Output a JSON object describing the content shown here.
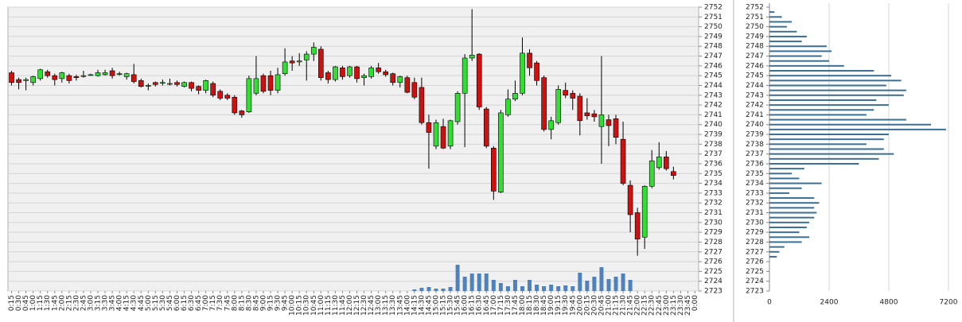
{
  "chart_data": [
    {
      "type": "candlestick",
      "categories": [
        "0:15",
        "0:30",
        "0:45",
        "1:00",
        "1:15",
        "1:30",
        "1:45",
        "2:00",
        "2:15",
        "2:30",
        "2:45",
        "3:00",
        "3:15",
        "3:30",
        "3:45",
        "4:00",
        "4:15",
        "4:30",
        "4:45",
        "5:00",
        "5:15",
        "5:30",
        "5:45",
        "6:00",
        "6:15",
        "6:30",
        "6:45",
        "7:00",
        "7:15",
        "7:30",
        "7:45",
        "8:00",
        "8:15",
        "8:30",
        "8:45",
        "9:00",
        "9:15",
        "9:30",
        "9:45",
        "10:00",
        "10:15",
        "10:30",
        "10:45",
        "11:00",
        "11:15",
        "11:30",
        "11:45",
        "12:00",
        "12:15",
        "12:30",
        "12:45",
        "13:00",
        "13:15",
        "13:30",
        "13:45",
        "14:00",
        "14:15",
        "14:30",
        "14:45",
        "15:00",
        "15:15",
        "15:30",
        "15:45",
        "16:00",
        "16:15",
        "16:30",
        "16:45",
        "17:00",
        "17:15",
        "17:30",
        "17:45",
        "18:00",
        "18:15",
        "18:30",
        "18:45",
        "19:00",
        "19:15",
        "19:30",
        "19:45",
        "20:00",
        "20:15",
        "20:30",
        "20:45",
        "21:00",
        "21:15",
        "21:30",
        "21:45",
        "22:00",
        "22:15",
        "22:30",
        "22:45",
        "23:00",
        "23:15",
        "23:30",
        "23:45",
        "0:00"
      ],
      "open": [
        2745.3,
        2744.6,
        2744.5,
        2744.3,
        2744.7,
        2745.4,
        2745,
        2744.7,
        2745,
        2744.9,
        2745,
        2745.1,
        2745,
        2745.1,
        2745.5,
        2745.2,
        2744.9,
        2745.1,
        2744.5,
        2744,
        2744.3,
        2744.3,
        2744.2,
        2744.3,
        2743.9,
        2744.3,
        2743.9,
        2743.5,
        2744.2,
        2743.4,
        2743,
        2742.8,
        2741.4,
        2741.3,
        2743.2,
        2745,
        2745,
        2743.5,
        2745.2,
        2746.5,
        2746.4,
        2746.6,
        2747.2,
        2747.7,
        2745.3,
        2744.6,
        2745.8,
        2745,
        2745.9,
        2744.8,
        2744.9,
        2745.8,
        2745.4,
        2745.2,
        2744.3,
        2744.8,
        2744.3,
        2743.8,
        2740.2,
        2737.8,
        2739.8,
        2737.8,
        2740.3,
        2743.2,
        2746.8,
        2747.2,
        2741.6,
        2737.6,
        2733.1,
        2741,
        2742.6,
        2743.2,
        2747.3,
        2746.3,
        2744.8,
        2739.5,
        2740.2,
        2743.5,
        2743.2,
        2742.9,
        2741.2,
        2741.1,
        2739.8,
        2740.5,
        2740.6,
        2738.5,
        2733.8,
        2731,
        2728.5,
        2733.7,
        2735.6,
        2736.7,
        2735.2,
        null,
        null,
        null
      ],
      "high": [
        2745.5,
        2744.8,
        2744.8,
        2745,
        2745.7,
        2745.6,
        2745.2,
        2745.4,
        2745.2,
        2745.1,
        2745.5,
        2745.2,
        2745.6,
        2745.6,
        2745.8,
        2745.4,
        2745.3,
        2746.2,
        2744.7,
        2744.2,
        2744.4,
        2744.6,
        2744.7,
        2744.5,
        2744.4,
        2744.4,
        2744,
        2744.6,
        2744.4,
        2743.6,
        2743.2,
        2743,
        2741.5,
        2745,
        2747,
        2745.2,
        2745.5,
        2745.8,
        2747.8,
        2747,
        2747.3,
        2747.5,
        2748.4,
        2748,
        2745.5,
        2746,
        2746,
        2746,
        2746,
        2745.2,
        2746,
        2746.3,
        2745.6,
        2745.3,
        2745,
        2745,
        2744.8,
        2744.8,
        2741,
        2740.5,
        2740.6,
        2740.5,
        2743.4,
        2747.2,
        2751.8,
        2747.3,
        2741.8,
        2737.8,
        2741.5,
        2743.6,
        2744.5,
        2748.9,
        2747.7,
        2746.5,
        2745,
        2740.8,
        2744,
        2744.3,
        2743.5,
        2743.2,
        2742.7,
        2741.5,
        2747,
        2741,
        2741,
        2740.3,
        2734.3,
        2731.5,
        2733.8,
        2737.4,
        2738.2,
        2737.3,
        2735.7,
        null,
        null,
        null
      ],
      "low": [
        2744,
        2743.6,
        2743.5,
        2744,
        2744.5,
        2744.8,
        2744,
        2744.3,
        2744.2,
        2744.5,
        2744.8,
        2745,
        2744.9,
        2745,
        2744.7,
        2745,
        2744.6,
        2744.2,
        2743.8,
        2743.5,
        2743.9,
        2744,
        2744,
        2743.9,
        2743.8,
        2743.4,
        2743.1,
        2743.2,
        2742.8,
        2742.5,
        2742.5,
        2741,
        2740.7,
        2741.2,
        2743,
        2743.2,
        2743,
        2743.2,
        2745,
        2745.5,
        2746,
        2744.5,
        2746.5,
        2744.5,
        2744.2,
        2744.4,
        2744.6,
        2744.8,
        2744.3,
        2744,
        2744.7,
        2745.2,
        2744.9,
        2744,
        2743.8,
        2743.2,
        2742.6,
        2740,
        2735.5,
        2737.5,
        2737.5,
        2737.5,
        2740,
        2737.7,
        2746.5,
        2741.5,
        2737.6,
        2732.3,
        2733,
        2740.8,
        2742.4,
        2743,
        2745,
        2744,
        2739.3,
        2738.5,
        2740,
        2742.7,
        2741.5,
        2738.9,
        2740.5,
        2740.3,
        2736,
        2737.8,
        2738,
        2733.8,
        2729,
        2726.6,
        2727.3,
        2733.5,
        2735.4,
        2735.3,
        2734.4,
        null,
        null,
        null
      ],
      "close": [
        2744.3,
        2744.3,
        2744.6,
        2744.9,
        2745.6,
        2745,
        2744.6,
        2745.3,
        2744.5,
        2744.8,
        2745,
        2745.1,
        2745.3,
        2745.3,
        2745,
        2745.2,
        2745.2,
        2744.4,
        2743.9,
        2744,
        2744.1,
        2744.3,
        2744.2,
        2744.1,
        2744.3,
        2743.7,
        2743.5,
        2744.5,
        2743,
        2742.7,
        2742.7,
        2741.2,
        2741,
        2744.7,
        2744.7,
        2743.4,
        2743.5,
        2745.1,
        2746.4,
        2746.3,
        2746.5,
        2747.2,
        2747.9,
        2744.8,
        2744.6,
        2745.9,
        2744.9,
        2745.9,
        2744.7,
        2745,
        2745.8,
        2745.4,
        2745.1,
        2744.3,
        2744.9,
        2743.3,
        2742.8,
        2740.2,
        2739.2,
        2740.2,
        2737.6,
        2740.4,
        2743.2,
        2746.8,
        2747.1,
        2741.8,
        2737.8,
        2733.2,
        2741.2,
        2742.6,
        2743.2,
        2747.3,
        2745.8,
        2744.5,
        2739.5,
        2740.4,
        2743.6,
        2743,
        2742.7,
        2740.4,
        2740.9,
        2740.8,
        2741,
        2739.9,
        2738.7,
        2734,
        2730.8,
        2728.3,
        2733.7,
        2736.3,
        2736.7,
        2735.5,
        2734.8,
        null,
        null,
        null
      ],
      "volume": [
        null,
        null,
        null,
        null,
        null,
        null,
        null,
        null,
        null,
        null,
        null,
        null,
        null,
        null,
        null,
        null,
        null,
        null,
        null,
        null,
        null,
        null,
        null,
        null,
        null,
        null,
        null,
        null,
        null,
        null,
        null,
        null,
        null,
        null,
        null,
        null,
        null,
        null,
        null,
        null,
        null,
        null,
        null,
        null,
        null,
        null,
        null,
        null,
        null,
        null,
        null,
        null,
        null,
        null,
        null,
        null,
        2,
        4,
        5,
        3,
        3,
        5,
        33,
        18,
        22,
        22,
        22,
        14,
        10,
        6,
        14,
        6,
        14,
        8,
        6,
        8,
        6,
        7,
        6,
        23,
        13,
        18,
        30,
        15,
        18,
        22,
        14,
        null,
        null,
        null,
        null,
        null,
        null,
        null,
        null,
        null
      ],
      "up_color": "#33dd33",
      "down_color": "#cc1111",
      "volume_color": "#4f81bd",
      "ylim": [
        2723,
        2752
      ],
      "yticks": [
        2723,
        2724,
        2725,
        2726,
        2727,
        2728,
        2729,
        2730,
        2731,
        2732,
        2733,
        2734,
        2735,
        2736,
        2737,
        2738,
        2739,
        2740,
        2741,
        2742,
        2743,
        2744,
        2745,
        2746,
        2747,
        2748,
        2749,
        2750,
        2751,
        2752
      ],
      "grid": true
    },
    {
      "type": "profile",
      "y": [
        2726.5,
        2727,
        2727.5,
        2728,
        2728.5,
        2729,
        2729.5,
        2730,
        2730.5,
        2731,
        2731.5,
        2732,
        2732.5,
        2733,
        2733.5,
        2734,
        2734.5,
        2735,
        2735.5,
        2736,
        2736.5,
        2737,
        2737.5,
        2738,
        2738.5,
        2739,
        2739.5,
        2740,
        2740.5,
        2741,
        2741.5,
        2742,
        2742.5,
        2743,
        2743.5,
        2744,
        2744.5,
        2745,
        2745.5,
        2746,
        2746.5,
        2747,
        2747.5,
        2748,
        2748.5,
        2749,
        2749.5,
        2750,
        2750.5,
        2751,
        2751.5
      ],
      "values": [
        300,
        400,
        600,
        1300,
        1600,
        1200,
        1500,
        1600,
        1800,
        1900,
        1800,
        2000,
        1800,
        800,
        1300,
        2100,
        1200,
        900,
        1400,
        3600,
        4400,
        5000,
        4600,
        3900,
        4600,
        4800,
        7100,
        6500,
        5500,
        3900,
        4200,
        4800,
        4300,
        5400,
        5500,
        4700,
        5300,
        4900,
        4200,
        3000,
        2400,
        2100,
        2500,
        2300,
        1300,
        1500,
        1100,
        700,
        900,
        500,
        200
      ],
      "color": "#3d6e93",
      "xlim": [
        0,
        7200
      ],
      "xticks": [
        0,
        2400,
        4800,
        7200
      ],
      "ylim": [
        2723,
        2752
      ],
      "yticks": [
        2723,
        2724,
        2725,
        2726,
        2727,
        2728,
        2729,
        2730,
        2731,
        2732,
        2733,
        2734,
        2735,
        2736,
        2737,
        2738,
        2739,
        2740,
        2741,
        2742,
        2743,
        2744,
        2745,
        2746,
        2747,
        2748,
        2749,
        2750,
        2751,
        2752
      ],
      "grid": true
    }
  ]
}
